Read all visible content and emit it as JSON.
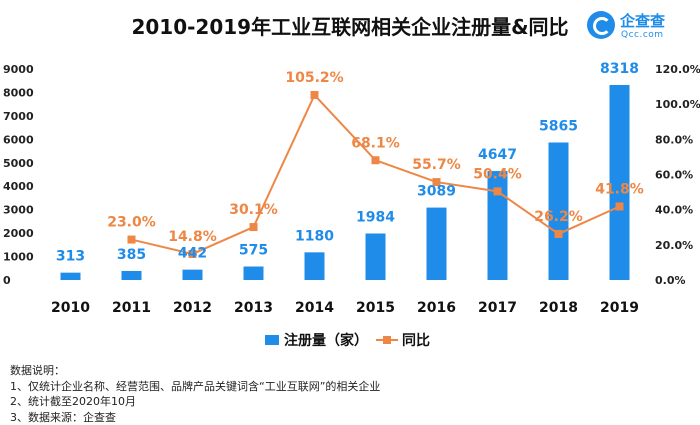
{
  "colors": {
    "bar": "#1f8cea",
    "line": "#ee8745",
    "bar_label": "#1f8cea",
    "line_label": "#ee8745"
  },
  "logo": {
    "name": "企查查",
    "sub": "Qcc.com"
  },
  "chart_data": {
    "type": "bar+line",
    "title": "2010-2019年工业互联网相关企业注册量&同比",
    "categories": [
      "2010",
      "2011",
      "2012",
      "2013",
      "2014",
      "2015",
      "2016",
      "2017",
      "2018",
      "2019"
    ],
    "series": [
      {
        "name": "注册量（家）",
        "type": "bar",
        "axis": "left",
        "values": [
          313,
          385,
          442,
          575,
          1180,
          1984,
          3089,
          4647,
          5865,
          8318
        ],
        "labels": [
          "313",
          "385",
          "442",
          "575",
          "1180",
          "1984",
          "3089",
          "4647",
          "5865",
          "8318"
        ]
      },
      {
        "name": "同比",
        "type": "line",
        "axis": "right",
        "values": [
          null,
          23.0,
          14.8,
          30.1,
          105.2,
          68.1,
          55.7,
          50.4,
          26.2,
          41.8
        ],
        "labels": [
          null,
          "23.0%",
          "14.8%",
          "30.1%",
          "105.2%",
          "68.1%",
          "55.7%",
          "50.4%",
          "26.2%",
          "41.8%"
        ]
      }
    ],
    "y_left": {
      "min": 0,
      "max": 9000,
      "ticks": [
        "0",
        "1000",
        "2000",
        "3000",
        "4000",
        "5000",
        "6000",
        "7000",
        "8000",
        "9000"
      ]
    },
    "y_right": {
      "min": 0,
      "max": 120,
      "ticks": [
        "0.0%",
        "20.0%",
        "40.0%",
        "60.0%",
        "80.0%",
        "100.0%",
        "120.0%"
      ]
    },
    "grid": false,
    "legend": "bottom-center"
  },
  "notes": {
    "heading": "数据说明：",
    "lines": [
      "1、仅统计企业名称、经营范围、品牌产品关键词含“工业互联网”的相关企业",
      "2、统计截至2020年10月",
      "3、数据来源：企查查"
    ]
  }
}
